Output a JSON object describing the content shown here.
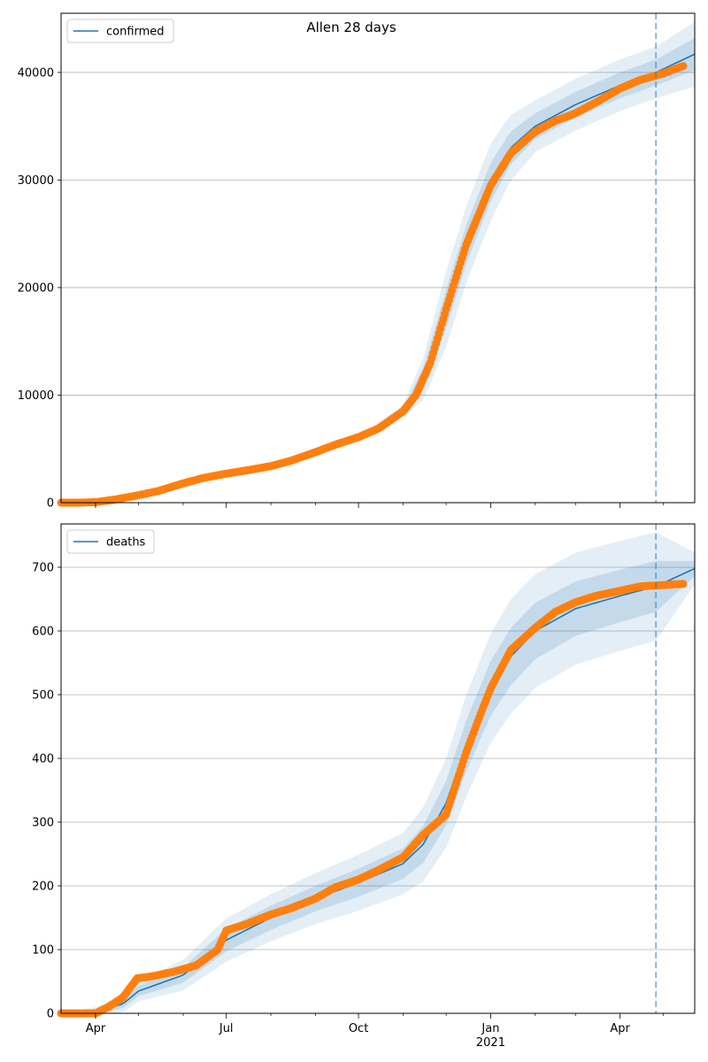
{
  "title": "Allen 28 days",
  "colors": {
    "model": "#1f77b4",
    "observed": "#ff7f0e",
    "band": "#1f77b4",
    "grid": "#b0b0b0"
  },
  "x_axis": {
    "start": "2020-03-08",
    "end": "2021-05-23",
    "ticks": [
      {
        "date": "2020-04-01",
        "label": "Apr",
        "sublabel": ""
      },
      {
        "date": "2020-07-01",
        "label": "Jul",
        "sublabel": ""
      },
      {
        "date": "2020-10-01",
        "label": "Oct",
        "sublabel": ""
      },
      {
        "date": "2021-01-01",
        "label": "Jan",
        "sublabel": "2021"
      },
      {
        "date": "2021-04-01",
        "label": "Apr",
        "sublabel": ""
      }
    ],
    "minor_ticks": [
      "2020-05-01",
      "2020-06-01",
      "2020-08-01",
      "2020-09-01",
      "2020-11-01",
      "2020-12-01",
      "2021-02-01",
      "2021-03-01",
      "2021-05-01"
    ]
  },
  "chart_data": [
    {
      "type": "line",
      "name": "confirmed",
      "legend": "confirmed",
      "legend_position": "upper-left",
      "grid": "y",
      "ylim": [
        0,
        45500
      ],
      "yticks": [
        0,
        10000,
        20000,
        30000,
        40000
      ],
      "forecast_start": "2021-04-26",
      "observed": [
        [
          "2020-03-08",
          0
        ],
        [
          "2020-03-20",
          0
        ],
        [
          "2020-04-01",
          50
        ],
        [
          "2020-04-15",
          300
        ],
        [
          "2020-05-01",
          700
        ],
        [
          "2020-05-15",
          1100
        ],
        [
          "2020-06-01",
          1800
        ],
        [
          "2020-06-15",
          2300
        ],
        [
          "2020-07-01",
          2700
        ],
        [
          "2020-07-15",
          3000
        ],
        [
          "2020-08-01",
          3400
        ],
        [
          "2020-08-15",
          3900
        ],
        [
          "2020-09-01",
          4700
        ],
        [
          "2020-09-15",
          5400
        ],
        [
          "2020-10-01",
          6100
        ],
        [
          "2020-10-15",
          6900
        ],
        [
          "2020-11-01",
          8500
        ],
        [
          "2020-11-10",
          10000
        ],
        [
          "2020-11-20",
          13000
        ],
        [
          "2020-12-01",
          18000
        ],
        [
          "2020-12-15",
          24000
        ],
        [
          "2021-01-01",
          29500
        ],
        [
          "2021-01-15",
          32500
        ],
        [
          "2021-02-01",
          34500
        ],
        [
          "2021-02-15",
          35500
        ],
        [
          "2021-03-01",
          36200
        ],
        [
          "2021-03-15",
          37200
        ],
        [
          "2021-04-01",
          38500
        ],
        [
          "2021-04-15",
          39300
        ],
        [
          "2021-05-01",
          39900
        ],
        [
          "2021-05-15",
          40600
        ]
      ],
      "model": [
        [
          "2020-03-08",
          0
        ],
        [
          "2020-04-01",
          50
        ],
        [
          "2020-05-01",
          700
        ],
        [
          "2020-06-01",
          1800
        ],
        [
          "2020-07-01",
          2700
        ],
        [
          "2020-08-01",
          3400
        ],
        [
          "2020-09-01",
          4700
        ],
        [
          "2020-10-01",
          6100
        ],
        [
          "2020-11-01",
          8500
        ],
        [
          "2020-11-15",
          11500
        ],
        [
          "2020-12-01",
          18000
        ],
        [
          "2020-12-15",
          24000
        ],
        [
          "2021-01-01",
          29800
        ],
        [
          "2021-01-15",
          33000
        ],
        [
          "2021-02-01",
          35000
        ],
        [
          "2021-03-01",
          37000
        ],
        [
          "2021-04-01",
          38800
        ],
        [
          "2021-04-26",
          40000
        ],
        [
          "2021-05-23",
          41700
        ]
      ],
      "bands": [
        {
          "width": [
            [
              "2020-03-08",
              0
            ],
            [
              "2020-10-01",
              0
            ],
            [
              "2020-11-01",
              300
            ],
            [
              "2020-12-01",
              1800
            ],
            [
              "2021-01-01",
              1800
            ],
            [
              "2021-02-01",
              1200
            ],
            [
              "2021-04-26",
              1200
            ],
            [
              "2021-05-23",
              1500
            ]
          ]
        },
        {
          "width": [
            [
              "2020-03-08",
              0
            ],
            [
              "2020-10-01",
              0
            ],
            [
              "2020-11-01",
              600
            ],
            [
              "2020-12-01",
              3500
            ],
            [
              "2021-01-01",
              3600
            ],
            [
              "2021-02-01",
              2400
            ],
            [
              "2021-04-26",
              2400
            ],
            [
              "2021-05-23",
              3000
            ]
          ]
        }
      ]
    },
    {
      "type": "line",
      "name": "deaths",
      "legend": "deaths",
      "legend_position": "upper-left",
      "grid": "y",
      "ylim": [
        0,
        768
      ],
      "yticks": [
        0,
        100,
        200,
        300,
        400,
        500,
        600,
        700
      ],
      "forecast_start": "2021-04-26",
      "observed": [
        [
          "2020-03-08",
          0
        ],
        [
          "2020-04-01",
          0
        ],
        [
          "2020-04-10",
          10
        ],
        [
          "2020-04-20",
          25
        ],
        [
          "2020-04-30",
          55
        ],
        [
          "2020-05-10",
          58
        ],
        [
          "2020-05-25",
          65
        ],
        [
          "2020-06-10",
          75
        ],
        [
          "2020-06-25",
          100
        ],
        [
          "2020-07-01",
          130
        ],
        [
          "2020-07-15",
          140
        ],
        [
          "2020-08-01",
          155
        ],
        [
          "2020-08-15",
          165
        ],
        [
          "2020-09-01",
          180
        ],
        [
          "2020-09-15",
          198
        ],
        [
          "2020-10-01",
          210
        ],
        [
          "2020-10-15",
          225
        ],
        [
          "2020-11-01",
          245
        ],
        [
          "2020-11-15",
          280
        ],
        [
          "2020-12-01",
          312
        ],
        [
          "2020-12-05",
          340
        ],
        [
          "2020-12-15",
          410
        ],
        [
          "2020-12-25",
          470
        ],
        [
          "2021-01-01",
          510
        ],
        [
          "2021-01-15",
          570
        ],
        [
          "2021-02-01",
          605
        ],
        [
          "2021-02-15",
          630
        ],
        [
          "2021-03-01",
          645
        ],
        [
          "2021-03-15",
          655
        ],
        [
          "2021-04-01",
          663
        ],
        [
          "2021-04-15",
          670
        ],
        [
          "2021-05-01",
          672
        ],
        [
          "2021-05-15",
          674
        ]
      ],
      "model": [
        [
          "2020-03-08",
          0
        ],
        [
          "2020-04-01",
          2
        ],
        [
          "2020-04-20",
          15
        ],
        [
          "2020-05-01",
          35
        ],
        [
          "2020-06-01",
          60
        ],
        [
          "2020-07-01",
          115
        ],
        [
          "2020-08-01",
          150
        ],
        [
          "2020-09-01",
          180
        ],
        [
          "2020-10-01",
          205
        ],
        [
          "2020-11-01",
          235
        ],
        [
          "2020-11-15",
          265
        ],
        [
          "2020-12-01",
          330
        ],
        [
          "2020-12-15",
          420
        ],
        [
          "2021-01-01",
          510
        ],
        [
          "2021-01-15",
          560
        ],
        [
          "2021-02-01",
          600
        ],
        [
          "2021-03-01",
          635
        ],
        [
          "2021-04-01",
          655
        ],
        [
          "2021-04-26",
          670
        ],
        [
          "2021-05-23",
          698
        ]
      ],
      "bands": [
        {
          "width": [
            [
              "2020-03-08",
              0
            ],
            [
              "2020-04-15",
              6
            ],
            [
              "2020-06-01",
              12
            ],
            [
              "2020-07-01",
              18
            ],
            [
              "2020-09-01",
              20
            ],
            [
              "2020-11-01",
              24
            ],
            [
              "2020-12-15",
              40
            ],
            [
              "2021-01-15",
              45
            ],
            [
              "2021-04-26",
              40
            ],
            [
              "2021-05-23",
              12
            ]
          ]
        },
        {
          "width": [
            [
              "2020-03-08",
              0
            ],
            [
              "2020-04-15",
              12
            ],
            [
              "2020-06-01",
              24
            ],
            [
              "2020-07-01",
              34
            ],
            [
              "2020-09-01",
              40
            ],
            [
              "2020-11-01",
              48
            ],
            [
              "2020-12-15",
              80
            ],
            [
              "2021-01-15",
              90
            ],
            [
              "2021-04-26",
              85
            ],
            [
              "2021-05-23",
              25
            ]
          ]
        }
      ]
    }
  ]
}
